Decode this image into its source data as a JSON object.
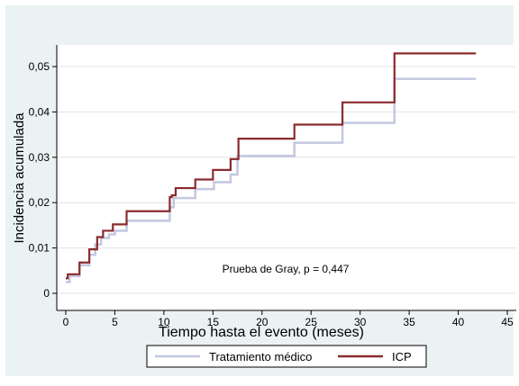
{
  "chart_data": {
    "type": "line",
    "title": "",
    "xlabel": "Tiempo hasta el evento (meses)",
    "ylabel": "Incidencia acumulada",
    "xlim": [
      0,
      45
    ],
    "ylim": [
      0,
      0.05
    ],
    "x_ticks": [
      0,
      5,
      10,
      15,
      20,
      25,
      30,
      35,
      40,
      45
    ],
    "x_tick_labels": [
      "0",
      "5",
      "10",
      "15",
      "20",
      "25",
      "30",
      "35",
      "40",
      "45"
    ],
    "y_ticks": [
      0,
      0.01,
      0.02,
      0.03,
      0.04,
      0.05
    ],
    "y_tick_labels": [
      "0",
      "0,01",
      "0,02",
      "0,03",
      "0,04",
      "0,05"
    ],
    "grid": "horizontal",
    "annotation": "Prueba de Gray, p = 0,447",
    "legend_position": "bottom",
    "line_style": "step",
    "series": [
      {
        "name": "Tratamiento médico",
        "color": "#c3c7e0",
        "x": [
          0,
          0.4,
          1.4,
          2.4,
          3.0,
          3.6,
          4.4,
          5.0,
          6.2,
          10.6,
          11.0,
          13.2,
          15.1,
          16.8,
          17.5,
          23.3,
          28.2,
          33.5,
          41.8
        ],
        "y": [
          0.0025,
          0.0038,
          0.0062,
          0.0085,
          0.0108,
          0.0122,
          0.013,
          0.0138,
          0.016,
          0.019,
          0.021,
          0.023,
          0.0245,
          0.0262,
          0.0303,
          0.0332,
          0.0376,
          0.0473,
          0.0473
        ]
      },
      {
        "name": "ICP",
        "color": "#8b2b2e",
        "x": [
          0,
          0.2,
          1.4,
          2.4,
          3.2,
          3.8,
          4.8,
          6.2,
          10.6,
          10.8,
          11.2,
          13.2,
          15.0,
          16.8,
          17.6,
          23.3,
          28.2,
          33.5,
          41.8
        ],
        "y": [
          0.0033,
          0.0042,
          0.0068,
          0.0097,
          0.0124,
          0.0138,
          0.0152,
          0.0181,
          0.0212,
          0.0216,
          0.0232,
          0.0251,
          0.0272,
          0.0296,
          0.0341,
          0.0372,
          0.0421,
          0.0529,
          0.0529
        ]
      }
    ]
  }
}
